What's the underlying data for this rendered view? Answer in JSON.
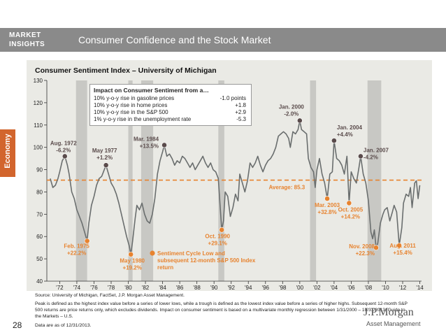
{
  "header": {
    "logo_line1": "MARKET",
    "logo_line2": "INSIGHTS",
    "title": "Consumer Confidence and the Stock Market"
  },
  "side_tab": "Economy",
  "infobox": {
    "title": "Impact on Consumer Sentiment from a…",
    "rows": [
      {
        "label": "10% y-o-y rise in gasoline prices",
        "value": "-1.0 points"
      },
      {
        "label": "10% y-o-y rise in home prices",
        "value": "+1.8"
      },
      {
        "label": "10% y-o-y rise in the S&P 500",
        "value": "+2.9"
      },
      {
        "label": "1% y-o-y rise in the unemployment rate",
        "value": "-5.3"
      }
    ]
  },
  "chart_data": {
    "type": "line",
    "title": "Consumer Sentiment Index – University of Michigan",
    "xlim": [
      1970.5,
      2014.2
    ],
    "ylim": [
      40,
      130
    ],
    "yticks": [
      40,
      50,
      60,
      70,
      80,
      90,
      100,
      110,
      120,
      130
    ],
    "xticks": [
      {
        "v": 1972,
        "label": "'72"
      },
      {
        "v": 1974,
        "label": "'74"
      },
      {
        "v": 1976,
        "label": "'76"
      },
      {
        "v": 1978,
        "label": "'78"
      },
      {
        "v": 1980,
        "label": "'80"
      },
      {
        "v": 1982,
        "label": "'82"
      },
      {
        "v": 1984,
        "label": "'84"
      },
      {
        "v": 1986,
        "label": "'86"
      },
      {
        "v": 1988,
        "label": "'88"
      },
      {
        "v": 1990,
        "label": "'90"
      },
      {
        "v": 1992,
        "label": "'92"
      },
      {
        "v": 1994,
        "label": "'94"
      },
      {
        "v": 1996,
        "label": "'96"
      },
      {
        "v": 1998,
        "label": "'98"
      },
      {
        "v": 2000,
        "label": "'00"
      },
      {
        "v": 2002,
        "label": "'02"
      },
      {
        "v": 2004,
        "label": "'04"
      },
      {
        "v": 2006,
        "label": "'06"
      },
      {
        "v": 2008,
        "label": "'08"
      },
      {
        "v": 2010,
        "label": "'10"
      },
      {
        "v": 2012,
        "label": "'12"
      },
      {
        "v": 2014,
        "label": "'14"
      }
    ],
    "recessions": [
      [
        1973.9,
        1975.2
      ],
      [
        1980.0,
        1980.5
      ],
      [
        1981.5,
        1982.9
      ],
      [
        1990.5,
        1991.2
      ],
      [
        2001.2,
        2001.9
      ],
      [
        2007.9,
        2009.5
      ]
    ],
    "average": {
      "value": 85.3,
      "label": "Average: 85.3"
    },
    "series": [
      {
        "points": [
          [
            1970.9,
            86
          ],
          [
            1971.2,
            82
          ],
          [
            1971.5,
            83
          ],
          [
            1971.8,
            86
          ],
          [
            1972.0,
            89
          ],
          [
            1972.3,
            94
          ],
          [
            1972.6,
            96
          ],
          [
            1972.9,
            92
          ],
          [
            1973.1,
            88
          ],
          [
            1973.4,
            80
          ],
          [
            1973.7,
            77
          ],
          [
            1974.0,
            72
          ],
          [
            1974.3,
            69
          ],
          [
            1974.6,
            66
          ],
          [
            1974.9,
            62
          ],
          [
            1975.2,
            58
          ],
          [
            1975.4,
            66
          ],
          [
            1975.7,
            74
          ],
          [
            1976.0,
            78
          ],
          [
            1976.3,
            83
          ],
          [
            1976.6,
            86
          ],
          [
            1976.9,
            87
          ],
          [
            1977.1,
            89
          ],
          [
            1977.4,
            92
          ],
          [
            1977.7,
            88
          ],
          [
            1978.0,
            84
          ],
          [
            1978.3,
            82
          ],
          [
            1978.6,
            79
          ],
          [
            1978.9,
            75
          ],
          [
            1979.2,
            70
          ],
          [
            1979.5,
            65
          ],
          [
            1979.8,
            60
          ],
          [
            1980.1,
            56
          ],
          [
            1980.3,
            52
          ],
          [
            1980.5,
            58
          ],
          [
            1980.8,
            68
          ],
          [
            1981.0,
            74
          ],
          [
            1981.3,
            72
          ],
          [
            1981.6,
            75
          ],
          [
            1981.9,
            70
          ],
          [
            1982.2,
            67
          ],
          [
            1982.5,
            66
          ],
          [
            1982.8,
            70
          ],
          [
            1983.1,
            77
          ],
          [
            1983.4,
            88
          ],
          [
            1983.7,
            94
          ],
          [
            1984.0,
            98
          ],
          [
            1984.2,
            101
          ],
          [
            1984.5,
            96
          ],
          [
            1984.8,
            97
          ],
          [
            1985.1,
            95
          ],
          [
            1985.4,
            92
          ],
          [
            1985.7,
            94
          ],
          [
            1986.0,
            93
          ],
          [
            1986.3,
            96
          ],
          [
            1986.6,
            95
          ],
          [
            1986.9,
            93
          ],
          [
            1987.2,
            91
          ],
          [
            1987.5,
            93
          ],
          [
            1987.8,
            90
          ],
          [
            1988.1,
            92
          ],
          [
            1988.4,
            94
          ],
          [
            1988.7,
            96
          ],
          [
            1989.0,
            93
          ],
          [
            1989.3,
            91
          ],
          [
            1989.6,
            93
          ],
          [
            1989.9,
            90
          ],
          [
            1990.2,
            89
          ],
          [
            1990.5,
            86
          ],
          [
            1990.7,
            74
          ],
          [
            1990.9,
            63
          ],
          [
            1991.1,
            67
          ],
          [
            1991.3,
            80
          ],
          [
            1991.6,
            78
          ],
          [
            1991.9,
            69
          ],
          [
            1992.2,
            73
          ],
          [
            1992.5,
            79
          ],
          [
            1992.8,
            76
          ],
          [
            1993.0,
            88
          ],
          [
            1993.3,
            84
          ],
          [
            1993.6,
            80
          ],
          [
            1993.9,
            85
          ],
          [
            1994.2,
            93
          ],
          [
            1994.5,
            91
          ],
          [
            1994.8,
            93
          ],
          [
            1995.1,
            96
          ],
          [
            1995.4,
            92
          ],
          [
            1995.7,
            89
          ],
          [
            1996.0,
            92
          ],
          [
            1996.3,
            94
          ],
          [
            1996.6,
            95
          ],
          [
            1996.9,
            97
          ],
          [
            1997.2,
            100
          ],
          [
            1997.5,
            105
          ],
          [
            1997.8,
            106
          ],
          [
            1998.1,
            107
          ],
          [
            1998.4,
            106
          ],
          [
            1998.7,
            104
          ],
          [
            1998.9,
            100
          ],
          [
            1999.2,
            107
          ],
          [
            1999.5,
            106
          ],
          [
            1999.8,
            108
          ],
          [
            2000.0,
            112
          ],
          [
            2000.2,
            108
          ],
          [
            2000.5,
            107
          ],
          [
            2000.8,
            106
          ],
          [
            2001.0,
            95
          ],
          [
            2001.3,
            91
          ],
          [
            2001.6,
            89
          ],
          [
            2001.8,
            82
          ],
          [
            2002.0,
            90
          ],
          [
            2002.3,
            95
          ],
          [
            2002.6,
            88
          ],
          [
            2002.9,
            84
          ],
          [
            2003.2,
            77
          ],
          [
            2003.5,
            88
          ],
          [
            2003.8,
            89
          ],
          [
            2004.0,
            103
          ],
          [
            2004.3,
            95
          ],
          [
            2004.6,
            94
          ],
          [
            2004.9,
            92
          ],
          [
            2005.2,
            88
          ],
          [
            2005.5,
            96
          ],
          [
            2005.75,
            75
          ],
          [
            2006.0,
            89
          ],
          [
            2006.3,
            86
          ],
          [
            2006.6,
            84
          ],
          [
            2006.9,
            91
          ],
          [
            2007.1,
            96
          ],
          [
            2007.4,
            88
          ],
          [
            2007.7,
            84
          ],
          [
            2008.0,
            76
          ],
          [
            2008.3,
            62
          ],
          [
            2008.5,
            59
          ],
          [
            2008.7,
            63
          ],
          [
            2008.9,
            55
          ],
          [
            2009.1,
            57
          ],
          [
            2009.4,
            66
          ],
          [
            2009.7,
            70
          ],
          [
            2009.9,
            72
          ],
          [
            2010.2,
            73
          ],
          [
            2010.5,
            67
          ],
          [
            2010.8,
            71
          ],
          [
            2011.0,
            74
          ],
          [
            2011.3,
            71
          ],
          [
            2011.6,
            56
          ],
          [
            2011.9,
            64
          ],
          [
            2012.1,
            75
          ],
          [
            2012.4,
            79
          ],
          [
            2012.7,
            78
          ],
          [
            2012.9,
            82
          ],
          [
            2013.1,
            73
          ],
          [
            2013.4,
            84
          ],
          [
            2013.6,
            85
          ],
          [
            2013.8,
            77
          ],
          [
            2014.0,
            83
          ]
        ]
      }
    ],
    "annotations": [
      {
        "x": 1972.6,
        "y": 96,
        "type": "peak",
        "label": [
          "Aug. 1972",
          "-6.2%"
        ],
        "anchor": "middle",
        "dx": -2,
        "dy": -16
      },
      {
        "x": 1977.4,
        "y": 92,
        "type": "peak",
        "label": [
          "May 1977",
          "+1.2%"
        ],
        "anchor": "middle",
        "dx": -2,
        "dy": -18
      },
      {
        "x": 1984.2,
        "y": 101,
        "type": "peak",
        "label": [
          "Mar. 1984",
          "+13.5%"
        ],
        "anchor": "end",
        "dx": -8,
        "dy": -6
      },
      {
        "x": 2000.0,
        "y": 112,
        "type": "peak",
        "label": [
          "Jan. 2000",
          "-2.0%"
        ],
        "anchor": "middle",
        "dx": -12,
        "dy": -17
      },
      {
        "x": 2004.0,
        "y": 103,
        "type": "peak",
        "label": [
          "Jan. 2004",
          "+4.4%"
        ],
        "anchor": "start",
        "dx": 4,
        "dy": -16
      },
      {
        "x": 2007.1,
        "y": 96,
        "type": "peak",
        "label": [
          "Jan. 2007",
          "-4.2%"
        ],
        "anchor": "start",
        "dx": 4,
        "dy": -6
      },
      {
        "x": 1975.2,
        "y": 58,
        "type": "trough",
        "label": [
          "Feb. 1975",
          "+22.2%"
        ],
        "anchor": "middle",
        "dx": -15,
        "dy": 10
      },
      {
        "x": 1980.3,
        "y": 52,
        "type": "trough",
        "label": [
          "May 1980",
          "+19.2%"
        ],
        "anchor": "middle",
        "dx": 2,
        "dy": 12
      },
      {
        "x": 1990.9,
        "y": 63,
        "type": "trough",
        "label": [
          "Oct. 1990",
          "+29.1%"
        ],
        "anchor": "middle",
        "dx": -6,
        "dy": 12
      },
      {
        "x": 2003.2,
        "y": 77,
        "type": "trough",
        "label": [
          "Mar. 2003",
          "+32.8%"
        ],
        "anchor": "middle",
        "dx": 0,
        "dy": 12
      },
      {
        "x": 2005.75,
        "y": 75,
        "type": "trough",
        "label": [
          "Oct. 2005",
          "+14.2%"
        ],
        "anchor": "middle",
        "dx": 2,
        "dy": 12
      },
      {
        "x": 2008.9,
        "y": 55,
        "type": "trough",
        "label": [
          "Nov. 2008",
          "+22.3%"
        ],
        "anchor": "end",
        "dx": -2,
        "dy": 1
      },
      {
        "x": 2011.6,
        "y": 56,
        "type": "trough",
        "label": [
          "Aug. 2011",
          "+15.4%"
        ],
        "anchor": "middle",
        "dx": 5,
        "dy": 3
      }
    ],
    "trough_legend": [
      "Sentiment Cycle Low and",
      "subsequent 12-month S&P 500 Index",
      "return"
    ],
    "colors": {
      "line": "#6a6e6e",
      "recession": "#c8c8c4",
      "peak": "#5a4b4b",
      "trough": "#e7832f",
      "average": "#e7832f"
    }
  },
  "footnotes": {
    "source": "Source: University of Michigan, FactSet, J.P. Morgan Asset Management.",
    "note": "Peak is defined as the highest index value before a series of lower lows, while a trough is defined as the lowest index value before a series of higher highs. Subsequent 12-month S&P 500 returns are price returns only, which excludes dividends. Impact on consumer sentiment is based on a multivariate monthly regression between 1/31/2000 – 10/31/2013. Guide to the Markets – U.S.",
    "date": "Data are as of 12/31/2013."
  },
  "page_number": "28",
  "brand": {
    "name": "J.P.Morgan",
    "sub": "Asset Management"
  }
}
